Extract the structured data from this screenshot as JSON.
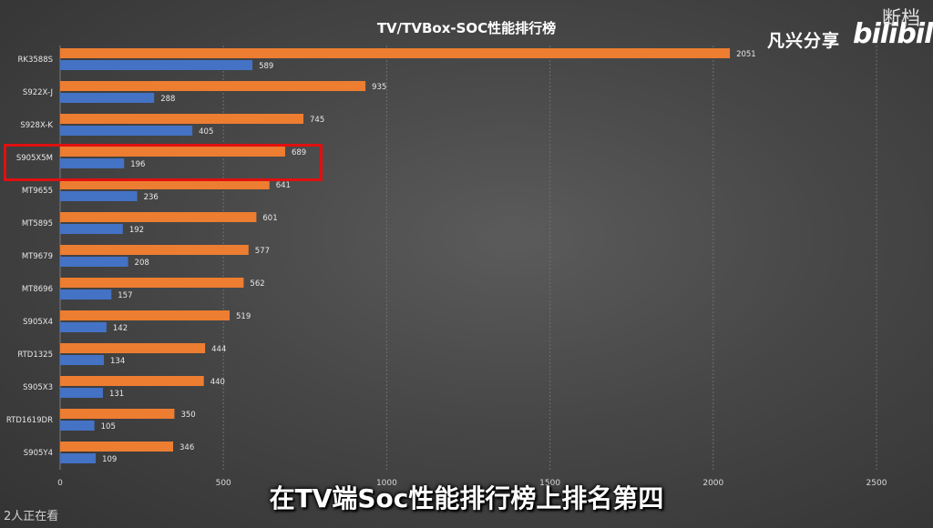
{
  "title": "TV/TVBox-SOC性能排行榜",
  "watermark": "凡兴分享",
  "logo": "bilibili",
  "corner_tag": "断档",
  "viewers": "2人正在看",
  "subtitle": "在TV端Soc性能排行榜上排名第四",
  "highlight_label": "S905X5M",
  "colors": {
    "series_a": "#ed7d31",
    "series_b": "#4472c4",
    "highlight": "#e01010"
  },
  "chart_data": {
    "type": "bar",
    "orientation": "horizontal",
    "title": "TV/TVBox-SOC性能排行榜",
    "xlabel": "",
    "ylabel": "",
    "xlim": [
      0,
      2500
    ],
    "xticks": [
      0,
      500,
      1000,
      1500,
      2000,
      2500
    ],
    "grid": true,
    "legend": "none",
    "categories": [
      "RK3588S",
      "S922X-J",
      "S928X-K",
      "S905X5M",
      "MT9655",
      "MT5895",
      "MT9679",
      "MT8696",
      "S905X4",
      "RTD1325",
      "S905X3",
      "RTD1619DR",
      "S905Y4"
    ],
    "series": [
      {
        "values": [
          2051,
          935,
          745,
          689,
          641,
          601,
          577,
          562,
          519,
          444,
          440,
          350,
          346
        ]
      },
      {
        "values": [
          589,
          288,
          405,
          196,
          236,
          192,
          208,
          157,
          142,
          134,
          131,
          105,
          109
        ]
      }
    ]
  }
}
